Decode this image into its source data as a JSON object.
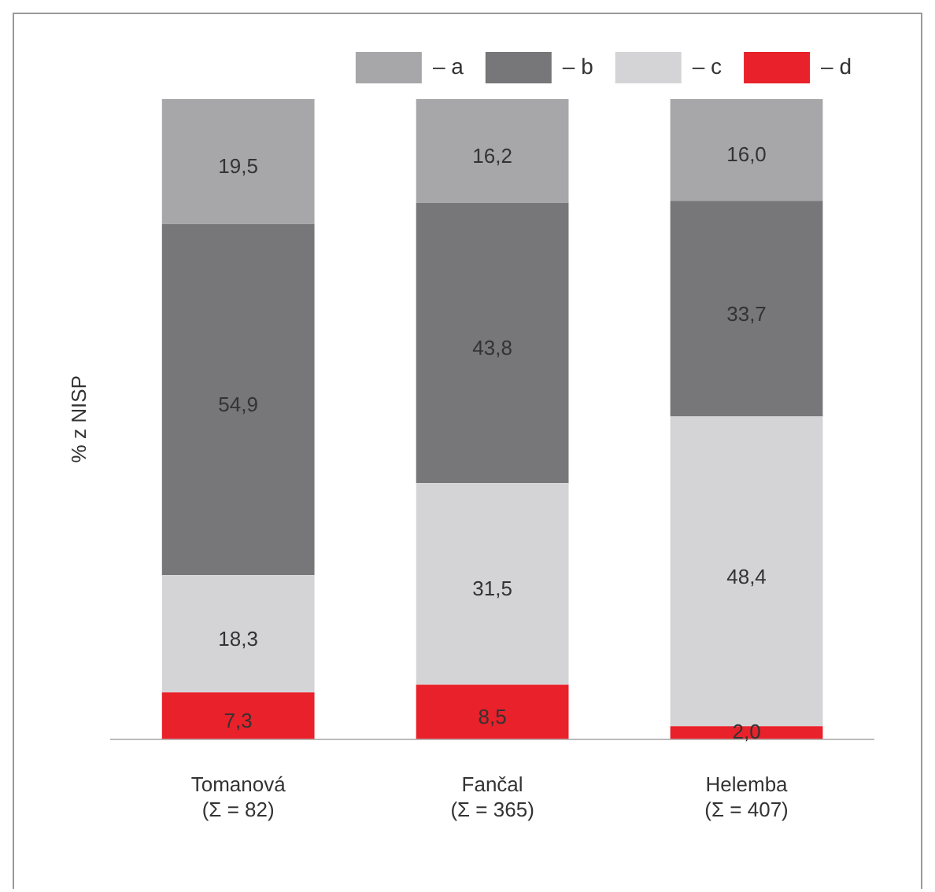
{
  "chart_data": {
    "type": "bar",
    "stacked": true,
    "ylabel": "% z NISP",
    "categories": [
      "Tomanová\n(Σ = 82)",
      "Fančal\n(Σ = 365)",
      "Helemba\n(Σ = 407)"
    ],
    "series": [
      {
        "name": "– d",
        "color": "#e8212a",
        "values": [
          7.3,
          8.5,
          2.0
        ],
        "value_labels": [
          "7,3",
          "8,5",
          "2,0"
        ]
      },
      {
        "name": "– c",
        "color": "#d4d4d6",
        "values": [
          18.3,
          31.5,
          48.4
        ],
        "value_labels": [
          "18,3",
          "31,5",
          "48,4"
        ]
      },
      {
        "name": "– b",
        "color": "#77777a",
        "values": [
          54.9,
          43.8,
          33.7
        ],
        "value_labels": [
          "54,9",
          "43,8",
          "33,7"
        ]
      },
      {
        "name": "– a",
        "color": "#a7a7a9",
        "values": [
          19.5,
          16.2,
          16.0
        ],
        "value_labels": [
          "19,5",
          "16,2",
          "16,0"
        ]
      }
    ],
    "ylim": [
      0,
      100
    ],
    "tick_labels": "x",
    "grid": false,
    "legend": "top"
  }
}
